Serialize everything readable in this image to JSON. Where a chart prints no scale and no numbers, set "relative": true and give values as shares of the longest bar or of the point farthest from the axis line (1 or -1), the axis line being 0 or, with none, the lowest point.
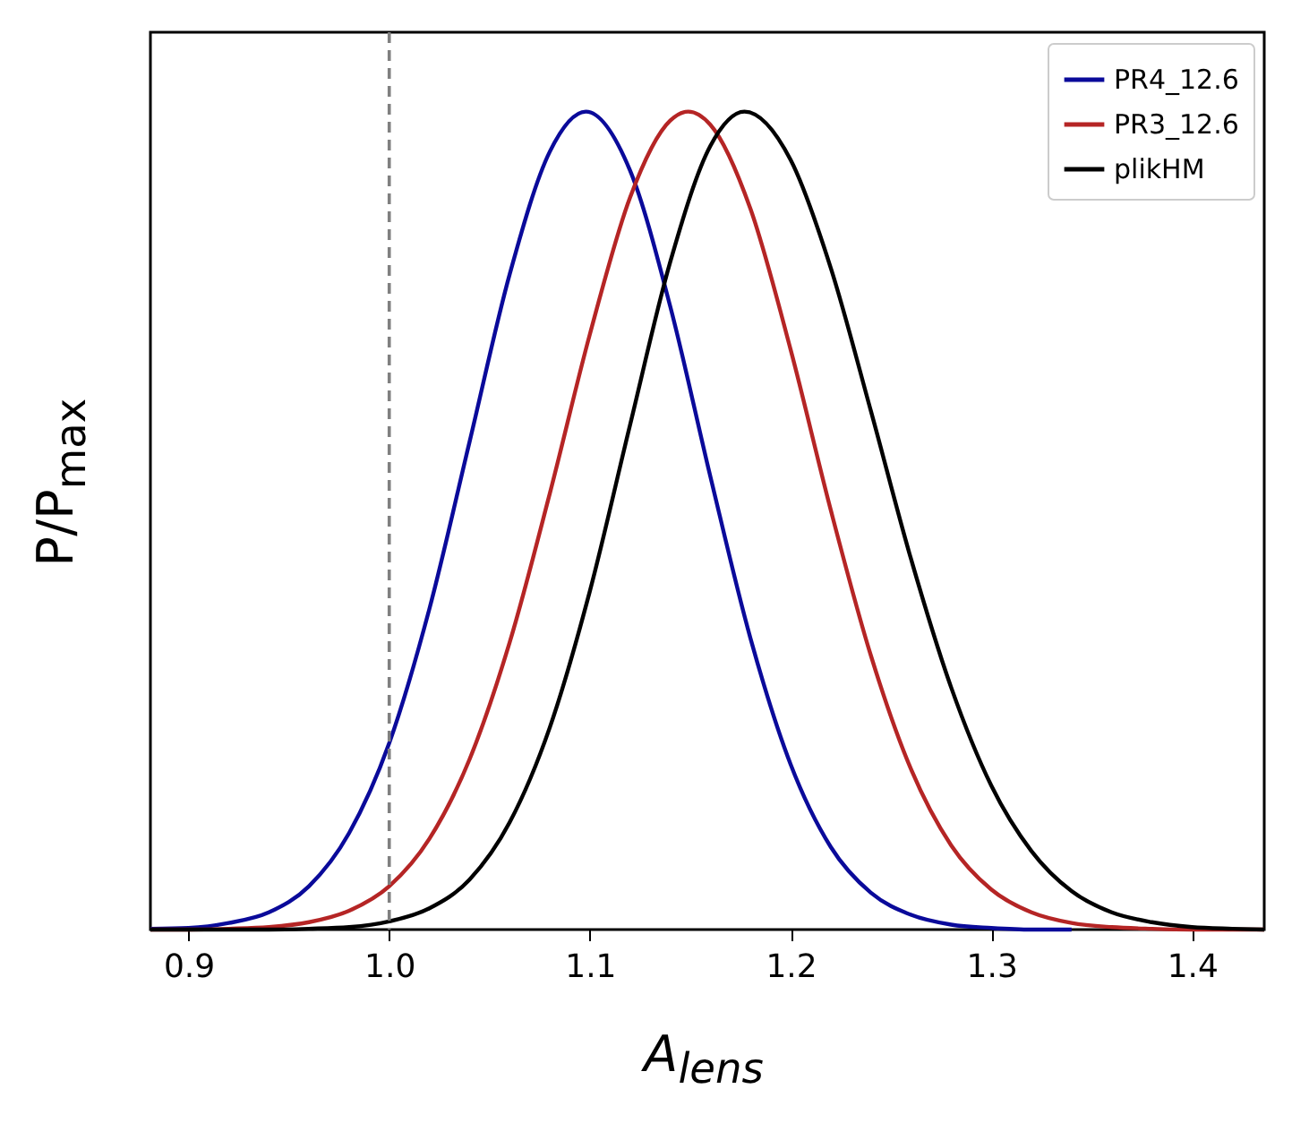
{
  "chart_data": {
    "type": "line",
    "xlabel": "A$_{lens}$",
    "ylabel": "P/P$_{max}$",
    "relative": true,
    "xlim": [
      0.881,
      1.436
    ],
    "xticks": [
      0.9,
      {
        "value": 1.0,
        "label": "1.0"
      },
      1.1,
      1.2,
      1.3,
      1.4
    ],
    "grid": false,
    "legend": "top right",
    "marker": "none",
    "line_style": "solid",
    "ref_lines": [
      {
        "axis": "x",
        "value": 1.0,
        "label": null,
        "color": "#808080",
        "line_style": "dashed"
      }
    ],
    "series": [
      {
        "name": "PR4_12.6",
        "color": "#0a0a9a",
        "x": [
          0.881,
          0.9,
          0.92,
          0.94,
          0.96,
          0.98,
          1.0,
          1.02,
          1.04,
          1.06,
          1.08,
          1.098,
          1.12,
          1.14,
          1.16,
          1.18,
          1.2,
          1.22,
          1.24,
          1.26,
          1.28,
          1.3,
          1.32,
          1.34
        ],
        "values": [
          0.001,
          0.002,
          0.008,
          0.021,
          0.053,
          0.118,
          0.228,
          0.392,
          0.596,
          0.801,
          0.951,
          1,
          0.928,
          0.762,
          0.554,
          0.356,
          0.202,
          0.101,
          0.045,
          0.018,
          0.006,
          0.002,
          0,
          0
        ]
      },
      {
        "name": "PR3_12.6",
        "color": "#b52525",
        "x": [
          0.881,
          0.9,
          0.92,
          0.94,
          0.96,
          0.98,
          1.0,
          1.02,
          1.04,
          1.06,
          1.08,
          1.1,
          1.12,
          1.14,
          1.149,
          1.16,
          1.18,
          1.2,
          1.22,
          1.24,
          1.26,
          1.28,
          1.3,
          1.32,
          1.34,
          1.36,
          1.38,
          1.4,
          1.42,
          1.436
        ],
        "values": [
          0,
          0,
          0.001,
          0.003,
          0.009,
          0.023,
          0.053,
          0.111,
          0.208,
          0.351,
          0.533,
          0.728,
          0.895,
          0.989,
          1,
          0.984,
          0.881,
          0.709,
          0.513,
          0.335,
          0.196,
          0.103,
          0.049,
          0.021,
          0.008,
          0.003,
          0.001,
          0,
          0,
          0
        ]
      },
      {
        "name": "plikHM",
        "color": "#000000",
        "x": [
          0.881,
          0.9,
          0.92,
          0.94,
          0.96,
          0.98,
          1.0,
          1.02,
          1.04,
          1.06,
          1.08,
          1.1,
          1.12,
          1.14,
          1.16,
          1.177,
          1.2,
          1.22,
          1.24,
          1.26,
          1.28,
          1.3,
          1.32,
          1.34,
          1.36,
          1.38,
          1.4,
          1.42,
          1.436
        ],
        "values": [
          0,
          0,
          0,
          0,
          0.001,
          0.003,
          0.01,
          0.026,
          0.061,
          0.131,
          0.247,
          0.414,
          0.617,
          0.816,
          0.958,
          1,
          0.941,
          0.809,
          0.634,
          0.453,
          0.296,
          0.176,
          0.096,
          0.047,
          0.021,
          0.009,
          0.003,
          0.001,
          0
        ]
      }
    ]
  }
}
